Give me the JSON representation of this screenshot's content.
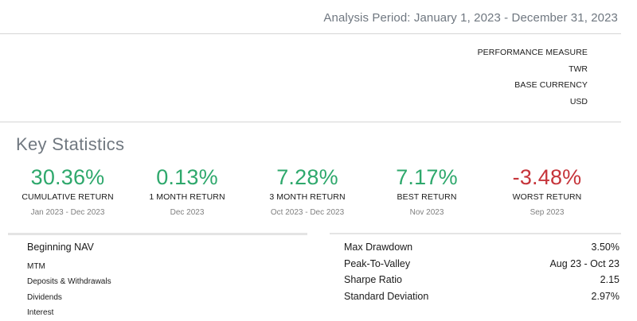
{
  "header": {
    "analysis_period": "Analysis Period: January 1, 2023 - December 31, 2023"
  },
  "meta": {
    "performance_measure_label": "PERFORMANCE MEASURE",
    "performance_measure_value": "TWR",
    "base_currency_label": "BASE CURRENCY",
    "base_currency_value": "USD"
  },
  "key_statistics": {
    "title": "Key Statistics",
    "stats": [
      {
        "value": "30.36%",
        "label": "CUMULATIVE RETURN",
        "period": "Jan 2023 - Dec 2023",
        "tone": "positive"
      },
      {
        "value": "0.13%",
        "label": "1 MONTH RETURN",
        "period": "Dec 2023",
        "tone": "positive"
      },
      {
        "value": "7.28%",
        "label": "3 MONTH RETURN",
        "period": "Oct 2023 - Dec 2023",
        "tone": "positive"
      },
      {
        "value": "7.17%",
        "label": "BEST RETURN",
        "period": "Nov 2023",
        "tone": "positive"
      },
      {
        "value": "-3.48%",
        "label": "WORST RETURN",
        "period": "Sep 2023",
        "tone": "negative"
      }
    ]
  },
  "nav_breakdown": {
    "items": [
      "Beginning NAV",
      "MTM",
      "Deposits & Withdrawals",
      "Dividends",
      "Interest"
    ]
  },
  "risk_metrics": [
    {
      "label": "Max Drawdown",
      "value": "3.50%"
    },
    {
      "label": "Peak-To-Valley",
      "value": "Aug 23 - Oct 23"
    },
    {
      "label": "Sharpe Ratio",
      "value": "2.15"
    },
    {
      "label": "Standard Deviation",
      "value": "2.97%"
    }
  ],
  "colors": {
    "positive": "#2ea86c",
    "negative": "#c6343a",
    "muted": "#707880"
  }
}
